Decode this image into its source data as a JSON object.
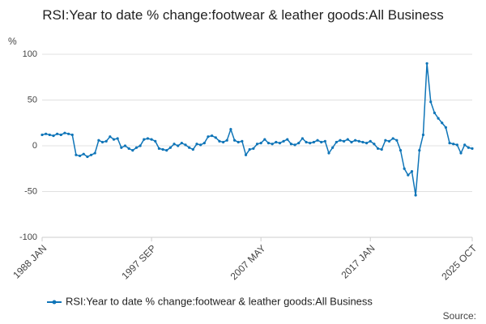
{
  "chart_data": {
    "type": "line",
    "title": "RSI:Year to date % change:footwear & leather goods:All Business",
    "y_label": "%",
    "source": "Source:",
    "categories": [
      "1988 JAN",
      null,
      null,
      null,
      null,
      null,
      null,
      null,
      null,
      null,
      null,
      null,
      null,
      null,
      null,
      null,
      null,
      null,
      null,
      null,
      null,
      null,
      null,
      null,
      null,
      null,
      null,
      null,
      null,
      "1997 SEP",
      null,
      null,
      null,
      null,
      null,
      null,
      null,
      null,
      null,
      null,
      null,
      null,
      null,
      null,
      null,
      null,
      null,
      null,
      null,
      null,
      null,
      null,
      null,
      null,
      null,
      null,
      null,
      null,
      "2007 MAY",
      null,
      null,
      null,
      null,
      null,
      null,
      null,
      null,
      null,
      null,
      null,
      null,
      null,
      null,
      null,
      null,
      null,
      null,
      null,
      null,
      null,
      null,
      null,
      null,
      null,
      null,
      null,
      null,
      "2017 JAN",
      null,
      null,
      null,
      null,
      null,
      null,
      null,
      null,
      null,
      null,
      null,
      null,
      null,
      null,
      null,
      null,
      null,
      null,
      null,
      null,
      null,
      null,
      null,
      null,
      null,
      null,
      "2025 OCT"
    ],
    "series": [
      {
        "name": "RSI:Year to date % change:footwear & leather goods:All Business",
        "color": "#0f75b8",
        "values": [
          12,
          13,
          12,
          11,
          13,
          12,
          14,
          13,
          12,
          -10,
          -11,
          -9,
          -12,
          -10,
          -8,
          6,
          4,
          5,
          10,
          7,
          8,
          -2,
          0,
          -3,
          -5,
          -2,
          0,
          7,
          8,
          7,
          5,
          -3,
          -4,
          -5,
          -2,
          2,
          0,
          3,
          1,
          -2,
          -4,
          2,
          1,
          3,
          10,
          11,
          9,
          5,
          4,
          6,
          18,
          6,
          4,
          5,
          -10,
          -4,
          -3,
          2,
          3,
          7,
          3,
          2,
          4,
          3,
          5,
          7,
          2,
          1,
          3,
          8,
          4,
          3,
          4,
          6,
          4,
          5,
          -8,
          -2,
          4,
          6,
          5,
          7,
          4,
          6,
          5,
          4,
          3,
          5,
          2,
          -3,
          -4,
          6,
          5,
          8,
          6,
          -5,
          -25,
          -32,
          -28,
          -54,
          -5,
          12,
          90,
          48,
          36,
          30,
          25,
          20,
          3,
          2,
          1,
          -8,
          1,
          -2,
          -3
        ]
      }
    ],
    "ylim": [
      -100,
      100
    ],
    "yticks": [
      100,
      50,
      0,
      -50,
      -100
    ],
    "grid": true
  }
}
